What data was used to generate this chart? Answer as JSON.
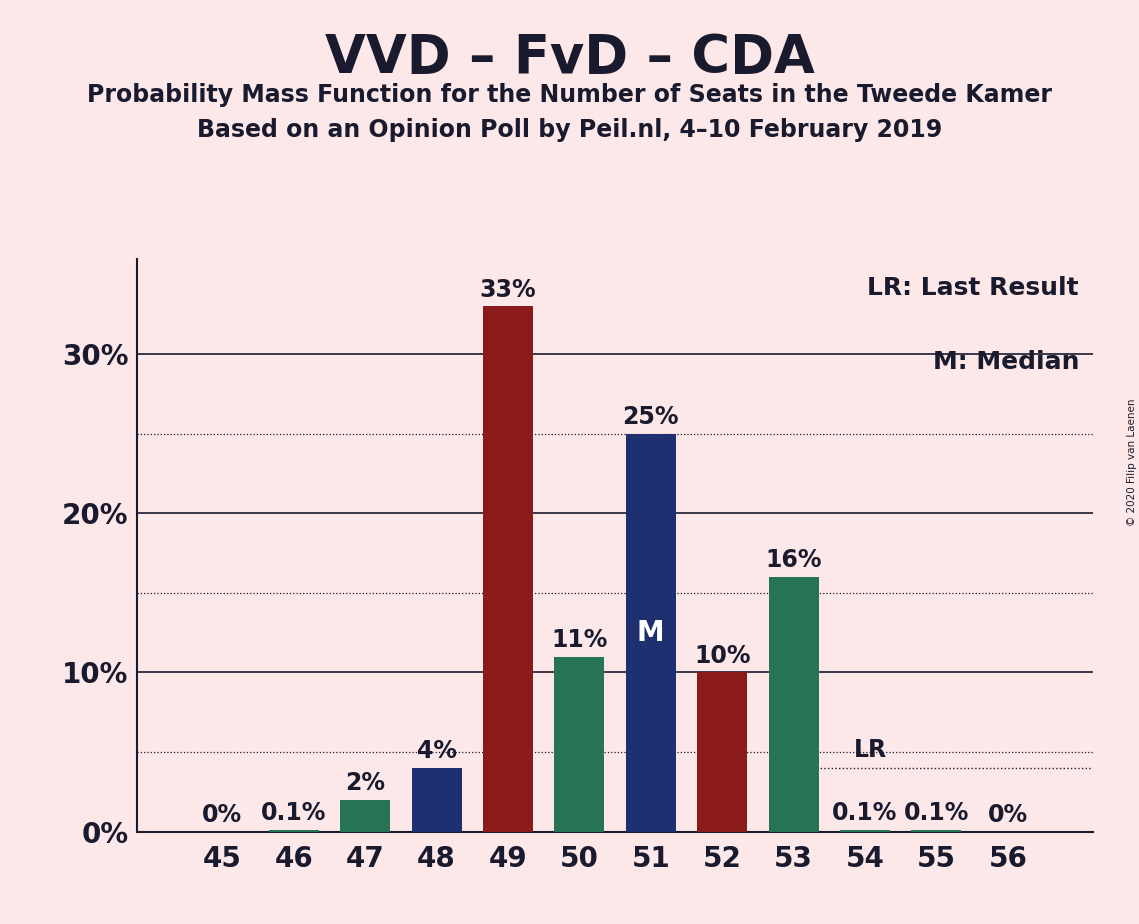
{
  "title": "VVD – FvD – CDA",
  "subtitle1": "Probability Mass Function for the Number of Seats in the Tweede Kamer",
  "subtitle2": "Based on an Opinion Poll by Peil.nl, 4–10 February 2019",
  "copyright": "© 2020 Filip van Laenen",
  "legend_lr": "LR: Last Result",
  "legend_m": "M: Median",
  "background_color": "#fce8e8",
  "seats": [
    45,
    46,
    47,
    48,
    49,
    50,
    51,
    52,
    53,
    54,
    55,
    56
  ],
  "values": [
    0.0,
    0.1,
    2.0,
    4.0,
    33.0,
    11.0,
    25.0,
    10.0,
    16.0,
    0.1,
    0.1,
    0.0
  ],
  "labels": [
    "0%",
    "0.1%",
    "2%",
    "4%",
    "33%",
    "11%",
    "25%",
    "10%",
    "16%",
    "0.1%",
    "0.1%",
    "0%"
  ],
  "colors": [
    "#267355",
    "#267355",
    "#267355",
    "#1e3070",
    "#8b1a1a",
    "#267355",
    "#1e3070",
    "#8b1a1a",
    "#267355",
    "#267355",
    "#267355",
    "#267355"
  ],
  "median_seat": 51,
  "last_result_seat": 54,
  "last_result_value": 4.0,
  "ylim": [
    0,
    36
  ],
  "solid_grid": [
    10,
    20,
    30
  ],
  "dotted_grid": [
    5,
    15,
    25
  ],
  "ytick_positions": [
    0,
    10,
    20,
    30
  ],
  "ytick_labels": [
    "0%",
    "10%",
    "20%",
    "30%"
  ],
  "title_fontsize": 38,
  "subtitle_fontsize": 17,
  "axis_tick_fontsize": 20,
  "bar_label_fontsize": 17,
  "legend_fontsize": 18,
  "text_color": "#1a1a2e"
}
